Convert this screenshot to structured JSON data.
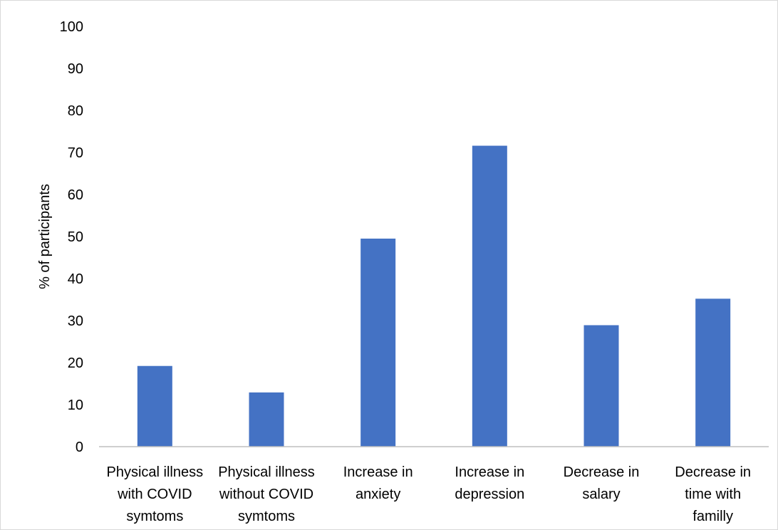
{
  "chart_data": {
    "type": "bar",
    "categories": [
      [
        "Physical illness",
        "with COVID",
        "symtoms"
      ],
      [
        "Physical illness",
        "without COVID",
        "symtoms"
      ],
      [
        "Increase in",
        "anxiety"
      ],
      [
        "Increase in",
        "depression"
      ],
      [
        "Decrease in",
        "salary"
      ],
      [
        "Decrease in",
        "time with",
        "familly"
      ]
    ],
    "values": [
      19.2,
      12.9,
      49.5,
      71.6,
      28.9,
      35.2
    ],
    "title": "",
    "xlabel": "",
    "ylabel": "% of participants",
    "ylim": [
      0,
      100
    ],
    "yticks": [
      "0",
      "10",
      "20",
      "30",
      "40",
      "50",
      "60",
      "70",
      "80",
      "90",
      "100"
    ],
    "grid": false,
    "legend": "none",
    "bar_color": "#4472C4",
    "axis_color": "#bfbfbf"
  }
}
